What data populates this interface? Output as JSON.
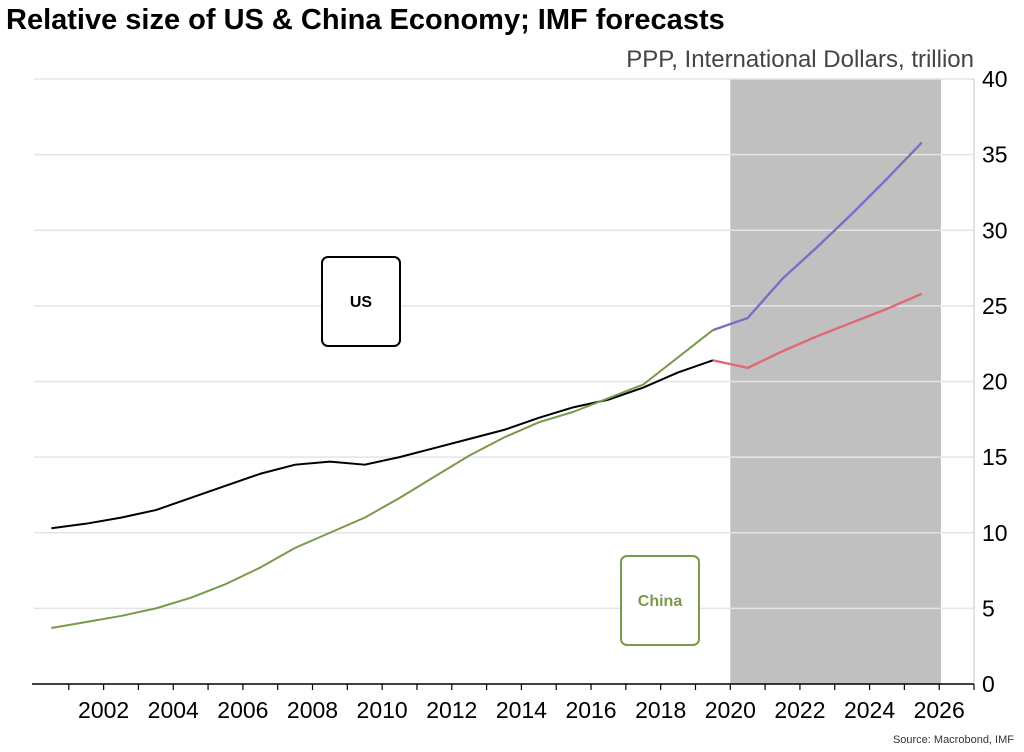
{
  "title": "Relative size of US & China Economy; IMF forecasts",
  "subtitle": "PPP, International Dollars, trillion",
  "source": "Source: Macrobond, IMF",
  "labels": {
    "us": "US",
    "china": "China"
  },
  "colors": {
    "us_history": "#000000",
    "us_forecast": "#e06a72",
    "china_history": "#7a9a4a",
    "china_forecast": "#7b6ec4",
    "forecast_shade": "#c0c0c0",
    "grid": "#e4e4e4"
  },
  "chart_data": {
    "type": "line",
    "title": "Relative size of US & China Economy; IMF forecasts",
    "ylabel": "PPP, International Dollars, trillion",
    "xlim": [
      2000,
      2027
    ],
    "ylim": [
      0,
      40
    ],
    "x_ticks": [
      2002,
      2004,
      2006,
      2008,
      2010,
      2012,
      2014,
      2016,
      2018,
      2020,
      2022,
      2024,
      2026
    ],
    "y_ticks": [
      0,
      5,
      10,
      15,
      20,
      25,
      30,
      35,
      40
    ],
    "grid": true,
    "forecast_region": [
      2020,
      2026
    ],
    "x": [
      2001,
      2002,
      2003,
      2004,
      2005,
      2006,
      2007,
      2008,
      2009,
      2010,
      2011,
      2012,
      2013,
      2014,
      2015,
      2016,
      2017,
      2018,
      2019,
      2020,
      2021,
      2022,
      2023,
      2024,
      2025,
      2026
    ],
    "series": [
      {
        "name": "US",
        "history_until": 2020,
        "values": [
          10.3,
          10.6,
          11.0,
          11.5,
          12.3,
          13.1,
          13.9,
          14.5,
          14.7,
          14.5,
          15.0,
          15.6,
          16.2,
          16.8,
          17.6,
          18.3,
          18.8,
          19.6,
          20.6,
          21.4,
          20.9,
          22.0,
          23.0,
          23.9,
          24.8,
          25.8
        ]
      },
      {
        "name": "China",
        "history_until": 2020,
        "values": [
          3.7,
          4.1,
          4.5,
          5.0,
          5.7,
          6.6,
          7.7,
          9.0,
          10.0,
          11.0,
          12.3,
          13.7,
          15.1,
          16.3,
          17.3,
          18.0,
          18.9,
          19.8,
          21.6,
          23.4,
          24.2,
          26.8,
          28.9,
          31.1,
          33.4,
          35.8
        ]
      }
    ]
  }
}
